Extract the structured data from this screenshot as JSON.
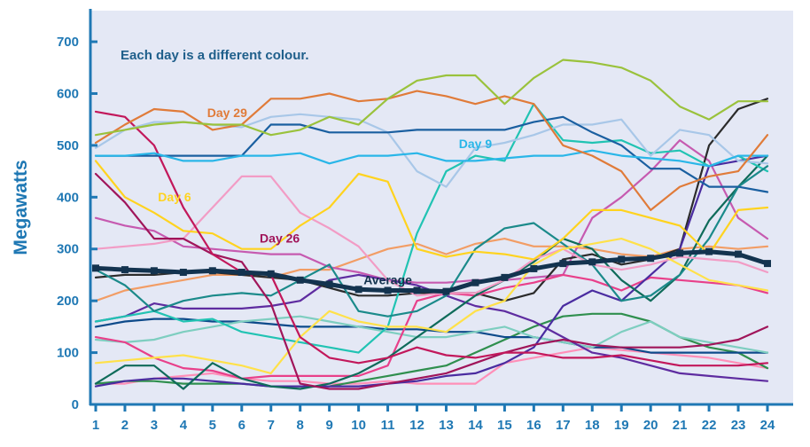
{
  "chart_data": {
    "type": "line",
    "title": "",
    "ylabel": "Megawatts",
    "xlabel": "",
    "note": "Each day is a different colour.",
    "x": [
      1,
      2,
      3,
      4,
      5,
      6,
      7,
      8,
      9,
      10,
      11,
      12,
      13,
      14,
      15,
      16,
      17,
      18,
      19,
      20,
      21,
      22,
      23,
      24
    ],
    "xlim": [
      1,
      24
    ],
    "ylim": [
      0,
      760
    ],
    "yticks": [
      0,
      100,
      200,
      300,
      400,
      500,
      600,
      700
    ],
    "grid": false,
    "background": "#e4e8f5",
    "axis_color": "#1f78b4",
    "series": [
      {
        "color": "#9ac23c",
        "values": [
          520,
          530,
          540,
          545,
          540,
          540,
          520,
          530,
          555,
          540,
          590,
          625,
          635,
          635,
          580,
          630,
          665,
          660,
          650,
          625,
          575,
          550,
          585,
          585
        ]
      },
      {
        "color": "#e07b39",
        "name": "Day 29",
        "values": [
          505,
          540,
          570,
          565,
          530,
          540,
          590,
          590,
          600,
          585,
          590,
          605,
          595,
          580,
          595,
          580,
          500,
          480,
          450,
          375,
          420,
          440,
          450,
          520
        ]
      },
      {
        "color": "#29b6e8",
        "name": "Day 9",
        "values": [
          480,
          480,
          485,
          470,
          470,
          480,
          480,
          485,
          465,
          480,
          480,
          485,
          470,
          470,
          475,
          480,
          480,
          490,
          480,
          475,
          470,
          460,
          480,
          480
        ]
      },
      {
        "color": "#1a5fa0",
        "values": [
          480,
          480,
          480,
          480,
          480,
          480,
          540,
          540,
          525,
          525,
          525,
          530,
          530,
          530,
          530,
          545,
          555,
          525,
          500,
          455,
          455,
          420,
          420,
          410
        ]
      },
      {
        "color": "#a8c7e8",
        "values": [
          495,
          530,
          545,
          545,
          540,
          535,
          555,
          560,
          555,
          550,
          525,
          450,
          420,
          495,
          505,
          520,
          540,
          540,
          550,
          480,
          530,
          520,
          470,
          465
        ]
      },
      {
        "color": "#c2185b",
        "values": [
          565,
          555,
          500,
          380,
          290,
          255,
          250,
          130,
          90,
          80,
          90,
          110,
          95,
          90,
          100,
          100,
          90,
          90,
          95,
          85,
          75,
          75,
          75,
          80
        ]
      },
      {
        "color": "#a0155a",
        "name": "Day 26",
        "values": [
          445,
          390,
          320,
          320,
          290,
          275,
          195,
          40,
          30,
          30,
          40,
          50,
          60,
          80,
          100,
          115,
          125,
          115,
          110,
          110,
          110,
          115,
          125,
          150
        ]
      },
      {
        "color": "#ffd31f",
        "name": "Day 6",
        "values": [
          470,
          400,
          370,
          335,
          330,
          300,
          300,
          345,
          380,
          445,
          430,
          300,
          285,
          295,
          290,
          280,
          320,
          375,
          375,
          360,
          345,
          290,
          375,
          380
        ]
      },
      {
        "color": "#ffe14a",
        "values": [
          80,
          85,
          90,
          95,
          85,
          75,
          60,
          130,
          180,
          160,
          150,
          150,
          140,
          180,
          200,
          270,
          300,
          310,
          320,
          300,
          270,
          240,
          230,
          220
        ]
      },
      {
        "color": "#f29cc5",
        "values": [
          300,
          305,
          310,
          320,
          380,
          440,
          440,
          370,
          340,
          305,
          240,
          210,
          215,
          215,
          240,
          280,
          300,
          270,
          260,
          270,
          285,
          280,
          275,
          255
        ]
      },
      {
        "color": "#1b8a8a",
        "values": [
          260,
          230,
          180,
          200,
          210,
          215,
          210,
          240,
          270,
          180,
          170,
          180,
          210,
          300,
          340,
          350,
          310,
          270,
          200,
          210,
          250,
          320,
          420,
          460
        ]
      },
      {
        "color": "#21c3b3",
        "values": [
          160,
          170,
          180,
          160,
          165,
          140,
          130,
          120,
          110,
          100,
          150,
          330,
          450,
          480,
          470,
          580,
          510,
          505,
          510,
          485,
          490,
          460,
          480,
          450
        ]
      },
      {
        "color": "#0f6b5a",
        "values": [
          40,
          75,
          75,
          30,
          80,
          50,
          35,
          30,
          40,
          60,
          90,
          130,
          170,
          210,
          240,
          275,
          320,
          300,
          240,
          200,
          250,
          355,
          420,
          480
        ]
      },
      {
        "color": "#4a2ca0",
        "values": [
          35,
          45,
          50,
          50,
          45,
          40,
          35,
          35,
          35,
          35,
          40,
          45,
          55,
          60,
          80,
          110,
          190,
          220,
          200,
          250,
          300,
          460,
          470,
          480
        ]
      },
      {
        "color": "#e8408a",
        "values": [
          130,
          120,
          90,
          70,
          65,
          50,
          55,
          55,
          55,
          55,
          75,
          200,
          215,
          210,
          225,
          235,
          250,
          240,
          220,
          245,
          240,
          235,
          230,
          215
        ]
      },
      {
        "color": "#2b2b2b",
        "values": [
          245,
          250,
          250,
          255,
          255,
          250,
          245,
          240,
          225,
          210,
          210,
          215,
          215,
          215,
          200,
          215,
          280,
          290,
          270,
          280,
          300,
          500,
          570,
          590
        ]
      },
      {
        "color": "#5e2ca0",
        "values": [
          160,
          170,
          195,
          185,
          185,
          185,
          190,
          200,
          240,
          250,
          240,
          230,
          210,
          190,
          180,
          160,
          130,
          100,
          90,
          75,
          60,
          55,
          50,
          45
        ]
      },
      {
        "color": "#c65ab0",
        "values": [
          360,
          345,
          335,
          305,
          300,
          295,
          290,
          290,
          265,
          255,
          240,
          235,
          235,
          240,
          240,
          245,
          250,
          360,
          400,
          450,
          510,
          470,
          360,
          320
        ]
      },
      {
        "color": "#f29d65",
        "values": [
          200,
          220,
          230,
          240,
          250,
          250,
          245,
          260,
          260,
          280,
          300,
          310,
          290,
          310,
          320,
          305,
          305,
          300,
          290,
          285,
          300,
          305,
          300,
          305
        ]
      },
      {
        "color": "#7ecec0",
        "values": [
          125,
          120,
          125,
          140,
          150,
          160,
          165,
          170,
          160,
          150,
          140,
          130,
          130,
          140,
          150,
          130,
          120,
          110,
          140,
          160,
          130,
          120,
          110,
          100
        ]
      },
      {
        "color": "#0d4a8a",
        "values": [
          150,
          160,
          165,
          165,
          160,
          160,
          155,
          150,
          150,
          150,
          145,
          145,
          140,
          140,
          130,
          130,
          120,
          110,
          110,
          100,
          100,
          100,
          100,
          100
        ]
      },
      {
        "color": "#2f8f4e",
        "values": [
          40,
          45,
          45,
          40,
          40,
          40,
          35,
          35,
          35,
          45,
          55,
          65,
          75,
          100,
          125,
          150,
          170,
          175,
          175,
          160,
          130,
          110,
          100,
          70
        ]
      },
      {
        "color": "#ff8fb8",
        "values": [
          40,
          40,
          50,
          55,
          60,
          50,
          45,
          45,
          40,
          40,
          45,
          40,
          40,
          40,
          80,
          90,
          100,
          110,
          105,
          100,
          95,
          90,
          80,
          70
        ]
      },
      {
        "color": "#13334f",
        "name": "Average",
        "values": [
          263,
          260,
          258,
          255,
          258,
          255,
          252,
          240,
          232,
          222,
          220,
          220,
          218,
          235,
          245,
          262,
          272,
          275,
          280,
          282,
          292,
          295,
          290,
          272
        ]
      }
    ]
  }
}
